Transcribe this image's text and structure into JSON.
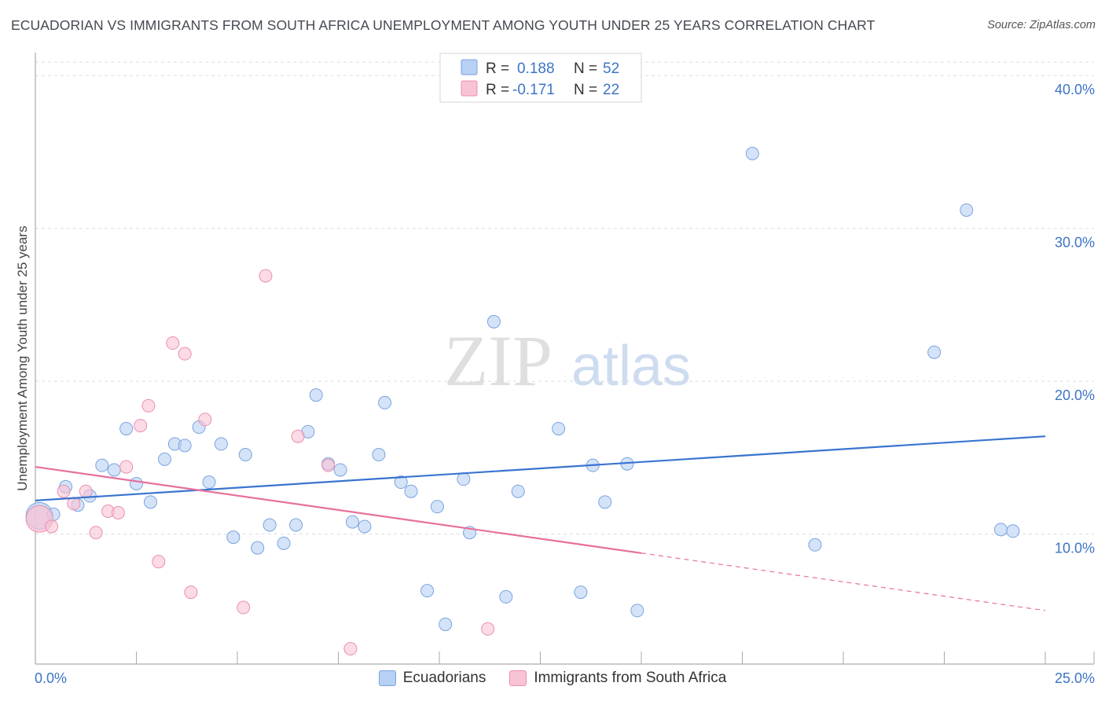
{
  "header": {
    "title": "ECUADORIAN VS IMMIGRANTS FROM SOUTH AFRICA UNEMPLOYMENT AMONG YOUTH UNDER 25 YEARS CORRELATION CHART",
    "source": "Source: ZipAtlas.com"
  },
  "watermark": {
    "zip": "ZIP",
    "atlas": "atlas"
  },
  "colors": {
    "blue_fill": "#b7d1f4",
    "blue_stroke": "#7aa3e0",
    "blue_line": "#3a74d0",
    "pink_fill": "#f8c3d4",
    "pink_stroke": "#ec8fae",
    "pink_line": "#e8709a",
    "tick_text": "#3d74c6",
    "grid": "#d9dde3"
  },
  "chart_data": {
    "type": "scatter",
    "title": "ECUADORIAN VS IMMIGRANTS FROM SOUTH AFRICA UNEMPLOYMENT AMONG YOUTH UNDER 25 YEARS CORRELATION CHART",
    "xlabel": "",
    "ylabel": "Unemployment Among Youth under 25 years",
    "xlim": [
      0,
      25
    ],
    "ylim": [
      1.5,
      41.5
    ],
    "x_tick_labels": [
      "0.0%",
      "25.0%"
    ],
    "y_ticks": [
      10,
      20,
      30,
      40
    ],
    "y_tick_labels": [
      "10.0%",
      "20.0%",
      "30.0%",
      "40.0%"
    ],
    "grid": true,
    "legend_placement": "top-center",
    "series": [
      {
        "name": "Ecuadorians",
        "color": "#b7d1f4",
        "R": "0.188",
        "N": "52",
        "trend": {
          "x": [
            0,
            25
          ],
          "y": [
            12.2,
            16.4
          ],
          "dashed_from": null
        },
        "points": [
          {
            "x": 0.1,
            "y": 11.2,
            "big": true
          },
          {
            "x": 0.45,
            "y": 11.3
          },
          {
            "x": 0.75,
            "y": 13.1
          },
          {
            "x": 1.05,
            "y": 11.9
          },
          {
            "x": 1.35,
            "y": 12.5
          },
          {
            "x": 1.65,
            "y": 14.5
          },
          {
            "x": 1.95,
            "y": 14.2
          },
          {
            "x": 2.25,
            "y": 16.9
          },
          {
            "x": 2.5,
            "y": 13.3
          },
          {
            "x": 2.85,
            "y": 12.1
          },
          {
            "x": 3.2,
            "y": 14.9
          },
          {
            "x": 3.45,
            "y": 15.9
          },
          {
            "x": 3.7,
            "y": 15.8
          },
          {
            "x": 4.05,
            "y": 17.0
          },
          {
            "x": 4.3,
            "y": 13.4
          },
          {
            "x": 4.6,
            "y": 15.9
          },
          {
            "x": 4.9,
            "y": 9.8
          },
          {
            "x": 5.2,
            "y": 15.2
          },
          {
            "x": 5.5,
            "y": 9.1
          },
          {
            "x": 5.8,
            "y": 10.6
          },
          {
            "x": 6.15,
            "y": 9.4
          },
          {
            "x": 6.45,
            "y": 10.6
          },
          {
            "x": 6.75,
            "y": 16.7
          },
          {
            "x": 6.95,
            "y": 19.1
          },
          {
            "x": 7.25,
            "y": 14.6
          },
          {
            "x": 7.55,
            "y": 14.2
          },
          {
            "x": 7.85,
            "y": 10.8
          },
          {
            "x": 8.15,
            "y": 10.5
          },
          {
            "x": 8.5,
            "y": 15.2
          },
          {
            "x": 8.65,
            "y": 18.6
          },
          {
            "x": 9.05,
            "y": 13.4
          },
          {
            "x": 9.3,
            "y": 12.8
          },
          {
            "x": 9.7,
            "y": 6.3
          },
          {
            "x": 9.95,
            "y": 11.8
          },
          {
            "x": 10.15,
            "y": 4.1
          },
          {
            "x": 10.6,
            "y": 13.6
          },
          {
            "x": 10.75,
            "y": 10.1
          },
          {
            "x": 11.35,
            "y": 23.9
          },
          {
            "x": 11.65,
            "y": 5.9
          },
          {
            "x": 11.95,
            "y": 12.8
          },
          {
            "x": 12.95,
            "y": 16.9
          },
          {
            "x": 13.5,
            "y": 6.2
          },
          {
            "x": 13.8,
            "y": 14.5
          },
          {
            "x": 14.1,
            "y": 12.1
          },
          {
            "x": 14.65,
            "y": 14.6
          },
          {
            "x": 14.9,
            "y": 5.0
          },
          {
            "x": 17.75,
            "y": 34.9
          },
          {
            "x": 19.3,
            "y": 9.3
          },
          {
            "x": 22.25,
            "y": 21.9
          },
          {
            "x": 23.05,
            "y": 31.2
          },
          {
            "x": 23.9,
            "y": 10.3
          },
          {
            "x": 24.2,
            "y": 10.2
          }
        ]
      },
      {
        "name": "Immigrants from South Africa",
        "color": "#f8c3d4",
        "R": "-0.171",
        "N": "22",
        "trend": {
          "x": [
            0,
            25
          ],
          "y": [
            14.4,
            5.0
          ],
          "dashed_from": 15.0
        },
        "points": [
          {
            "x": 0.1,
            "y": 11.0,
            "big": true
          },
          {
            "x": 0.4,
            "y": 10.5
          },
          {
            "x": 0.7,
            "y": 12.8
          },
          {
            "x": 0.95,
            "y": 12.0
          },
          {
            "x": 1.25,
            "y": 12.8
          },
          {
            "x": 1.5,
            "y": 10.1
          },
          {
            "x": 1.8,
            "y": 11.5
          },
          {
            "x": 2.05,
            "y": 11.4
          },
          {
            "x": 2.25,
            "y": 14.4
          },
          {
            "x": 2.6,
            "y": 17.1
          },
          {
            "x": 2.8,
            "y": 18.4
          },
          {
            "x": 3.05,
            "y": 8.2
          },
          {
            "x": 3.4,
            "y": 22.5
          },
          {
            "x": 3.7,
            "y": 21.8
          },
          {
            "x": 3.85,
            "y": 6.2
          },
          {
            "x": 4.2,
            "y": 17.5
          },
          {
            "x": 5.15,
            "y": 5.2
          },
          {
            "x": 5.7,
            "y": 26.9
          },
          {
            "x": 6.5,
            "y": 16.4
          },
          {
            "x": 7.25,
            "y": 14.5
          },
          {
            "x": 7.8,
            "y": 2.5
          },
          {
            "x": 11.2,
            "y": 3.8
          }
        ]
      }
    ]
  },
  "legend": {
    "r_label": "R =",
    "n_label": "N =",
    "rows": [
      {
        "r": "0.188",
        "n": "52"
      },
      {
        "r": "-0.171",
        "n": "22"
      }
    ]
  },
  "bottom_legend": {
    "items": [
      "Ecuadorians",
      "Immigrants from South Africa"
    ]
  }
}
